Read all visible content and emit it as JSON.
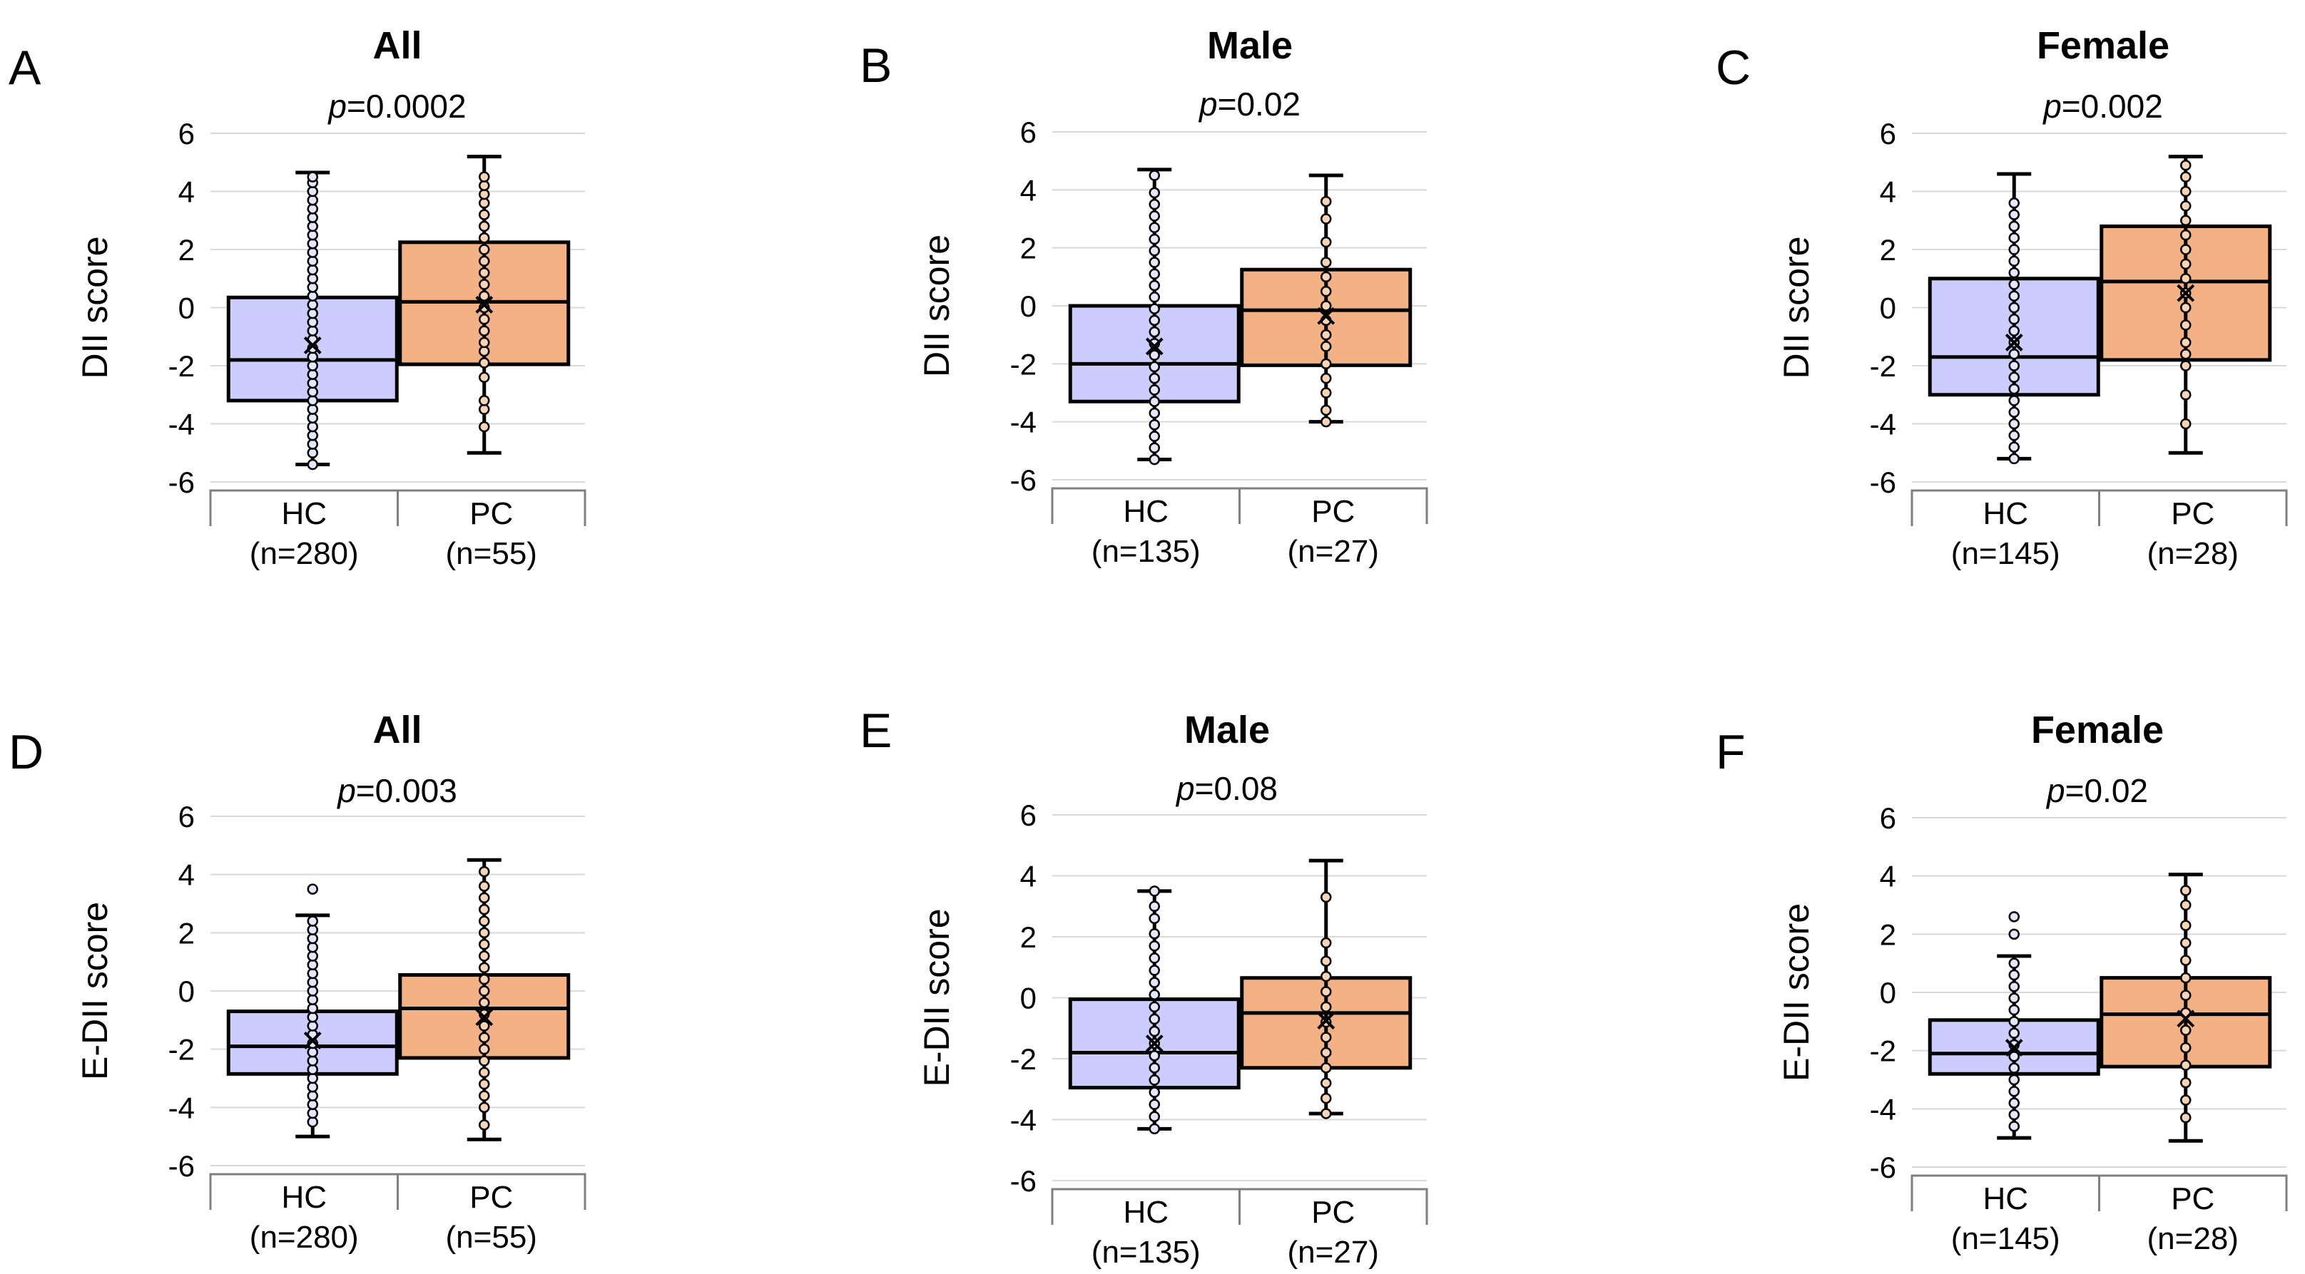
{
  "chart_data": [
    {
      "panel": "A",
      "type": "box",
      "title": "All",
      "p_prefix": "p",
      "p_value": "=0.0002",
      "ylabel": "DII score",
      "ylim": [
        -6,
        6
      ],
      "yticks": [
        6,
        4,
        2,
        0,
        -2,
        -4,
        -6
      ],
      "yticklabels": [
        "6",
        "4",
        "2",
        "0",
        "-2",
        "-4",
        "-6"
      ],
      "groups": [
        {
          "name": "HC",
          "n_label": "(n=280)",
          "min": -5.4,
          "q1": -3.2,
          "median": -1.8,
          "q3": 0.35,
          "max": 4.65,
          "mean": -1.3,
          "points": [
            -5.4,
            -5.0,
            -4.7,
            -4.4,
            -4.1,
            -3.8,
            -3.5,
            -3.2,
            -2.9,
            -2.6,
            -2.3,
            -2.0,
            -1.7,
            -1.4,
            -1.1,
            -0.8,
            -0.5,
            -0.2,
            0.1,
            0.4,
            0.7,
            1.0,
            1.3,
            1.6,
            1.9,
            2.2,
            2.5,
            2.8,
            3.1,
            3.4,
            3.7,
            4.0,
            4.3,
            4.5
          ]
        },
        {
          "name": "PC",
          "n_label": "(n=55)",
          "min": -5.0,
          "q1": -1.95,
          "median": 0.2,
          "q3": 2.25,
          "max": 5.2,
          "mean": 0.1,
          "points": [
            -4.1,
            -3.5,
            -3.2,
            -2.4,
            -1.9,
            -1.5,
            -1.2,
            -0.8,
            -0.4,
            0.0,
            0.4,
            0.8,
            1.2,
            1.6,
            2.0,
            2.4,
            2.8,
            3.2,
            3.6,
            3.9,
            4.2,
            4.5
          ]
        }
      ]
    },
    {
      "panel": "B",
      "type": "box",
      "title": "Male",
      "p_prefix": "p",
      "p_value": "=0.02",
      "ylabel": "DII score",
      "ylim": [
        -6,
        6
      ],
      "yticks": [
        6,
        4,
        2,
        0,
        -2,
        -4,
        -6
      ],
      "yticklabels": [
        "6",
        "4",
        "2",
        "0",
        "-2",
        "-4",
        "-6"
      ],
      "groups": [
        {
          "name": "HC",
          "n_label": "(n=135)",
          "min": -5.3,
          "q1": -3.3,
          "median": -2.0,
          "q3": 0.0,
          "max": 4.7,
          "mean": -1.4,
          "points": [
            -5.3,
            -4.9,
            -4.5,
            -4.1,
            -3.7,
            -3.3,
            -2.9,
            -2.5,
            -2.1,
            -1.7,
            -1.3,
            -0.9,
            -0.5,
            -0.1,
            0.3,
            0.7,
            1.1,
            1.5,
            1.9,
            2.3,
            2.7,
            3.1,
            3.5,
            3.9,
            4.5
          ]
        },
        {
          "name": "PC",
          "n_label": "(n=27)",
          "min": -4.0,
          "q1": -2.05,
          "median": -0.15,
          "q3": 1.25,
          "max": 4.5,
          "mean": -0.35,
          "points": [
            -4.0,
            -3.6,
            -3.0,
            -2.5,
            -2.0,
            -1.4,
            -1.0,
            -0.5,
            0.0,
            0.5,
            1.0,
            1.5,
            2.2,
            3.0,
            3.6
          ]
        }
      ]
    },
    {
      "panel": "C",
      "type": "box",
      "title": "Female",
      "p_prefix": "p",
      "p_value": "=0.002",
      "ylabel": "DII score",
      "ylim": [
        -6,
        6
      ],
      "yticks": [
        6,
        4,
        2,
        0,
        -2,
        -4,
        -6
      ],
      "yticklabels": [
        "6",
        "4",
        "2",
        "0",
        "-2",
        "-4",
        "-6"
      ],
      "groups": [
        {
          "name": "HC",
          "n_label": "(n=145)",
          "min": -5.2,
          "q1": -3.0,
          "median": -1.7,
          "q3": 1.0,
          "max": 4.6,
          "mean": -1.2,
          "points": [
            -5.2,
            -4.8,
            -4.4,
            -4.0,
            -3.6,
            -3.2,
            -2.8,
            -2.4,
            -2.0,
            -1.6,
            -1.2,
            -0.8,
            -0.4,
            0.0,
            0.4,
            0.8,
            1.2,
            1.6,
            2.0,
            2.4,
            2.8,
            3.2,
            3.6
          ]
        },
        {
          "name": "PC",
          "n_label": "(n=28)",
          "min": -5.0,
          "q1": -1.8,
          "median": 0.9,
          "q3": 2.8,
          "max": 5.2,
          "mean": 0.5,
          "points": [
            -4.0,
            -3.0,
            -2.0,
            -1.6,
            -1.2,
            -0.6,
            0.0,
            0.5,
            1.0,
            1.5,
            2.0,
            2.5,
            3.0,
            3.5,
            4.0,
            4.5,
            4.9
          ]
        }
      ]
    },
    {
      "panel": "D",
      "type": "box",
      "title": "All",
      "p_prefix": "p",
      "p_value": "=0.003",
      "ylabel": "E-DII score",
      "ylim": [
        -6,
        6
      ],
      "yticks": [
        6,
        4,
        2,
        0,
        -2,
        -4,
        -6
      ],
      "yticklabels": [
        "6",
        "4",
        "2",
        "0",
        "-2",
        "-4",
        "-6"
      ],
      "groups": [
        {
          "name": "HC",
          "n_label": "(n=280)",
          "min": -5.0,
          "q1": -2.85,
          "median": -1.9,
          "q3": -0.7,
          "max": 2.6,
          "mean": -1.7,
          "points": [
            -4.5,
            -4.2,
            -3.9,
            -3.6,
            -3.3,
            -3.0,
            -2.7,
            -2.4,
            -2.1,
            -1.8,
            -1.5,
            -1.2,
            -0.9,
            -0.6,
            -0.3,
            0.0,
            0.3,
            0.6,
            0.9,
            1.2,
            1.5,
            1.8,
            2.1,
            2.4,
            3.5
          ]
        },
        {
          "name": "PC",
          "n_label": "(n=55)",
          "min": -5.1,
          "q1": -2.3,
          "median": -0.6,
          "q3": 0.55,
          "max": 4.5,
          "mean": -0.9,
          "points": [
            -4.6,
            -4.0,
            -3.6,
            -3.2,
            -2.8,
            -2.4,
            -2.0,
            -1.6,
            -1.2,
            -0.8,
            -0.4,
            0.0,
            0.4,
            0.8,
            1.2,
            1.6,
            2.0,
            2.4,
            2.8,
            3.2,
            3.6,
            4.1
          ]
        }
      ]
    },
    {
      "panel": "E",
      "type": "box",
      "title": "Male",
      "p_prefix": "p",
      "p_value": "=0.08",
      "ylabel": "E-DII score",
      "ylim": [
        -6,
        6
      ],
      "yticks": [
        6,
        4,
        2,
        0,
        -2,
        -4,
        -6
      ],
      "yticklabels": [
        "6",
        "4",
        "2",
        "0",
        "-2",
        "-4",
        "-6"
      ],
      "groups": [
        {
          "name": "HC",
          "n_label": "(n=135)",
          "min": -4.3,
          "q1": -2.95,
          "median": -1.8,
          "q3": -0.05,
          "max": 3.5,
          "mean": -1.5,
          "points": [
            -4.3,
            -3.9,
            -3.5,
            -3.1,
            -2.7,
            -2.3,
            -1.9,
            -1.5,
            -1.1,
            -0.7,
            -0.3,
            0.1,
            0.5,
            0.9,
            1.3,
            1.7,
            2.1,
            2.6,
            3.0,
            3.5
          ]
        },
        {
          "name": "PC",
          "n_label": "(n=27)",
          "min": -3.8,
          "q1": -2.3,
          "median": -0.5,
          "q3": 0.65,
          "max": 4.5,
          "mean": -0.75,
          "points": [
            -3.8,
            -3.3,
            -2.8,
            -2.3,
            -1.8,
            -1.3,
            -0.8,
            -0.3,
            0.2,
            0.7,
            1.2,
            1.8,
            3.3
          ]
        }
      ]
    },
    {
      "panel": "F",
      "type": "box",
      "title": "Female",
      "p_prefix": "p",
      "p_value": "=0.02",
      "ylabel": "E-DII score",
      "ylim": [
        -6,
        6
      ],
      "yticks": [
        6,
        4,
        2,
        0,
        -2,
        -4,
        -6
      ],
      "yticklabels": [
        "6",
        "4",
        "2",
        "0",
        "-2",
        "-4",
        "-6"
      ],
      "groups": [
        {
          "name": "HC",
          "n_label": "(n=145)",
          "min": -5.0,
          "q1": -2.8,
          "median": -2.1,
          "q3": -0.95,
          "max": 1.25,
          "mean": -1.9,
          "points": [
            -4.6,
            -4.2,
            -3.8,
            -3.4,
            -3.0,
            -2.6,
            -2.2,
            -1.8,
            -1.4,
            -1.0,
            -0.6,
            -0.2,
            0.2,
            0.6,
            1.0,
            2.0,
            2.6
          ]
        },
        {
          "name": "PC",
          "n_label": "(n=28)",
          "min": -5.1,
          "q1": -2.55,
          "median": -0.75,
          "q3": 0.5,
          "max": 4.05,
          "mean": -0.9,
          "points": [
            -4.3,
            -3.7,
            -3.1,
            -2.5,
            -1.9,
            -1.3,
            -0.7,
            -0.1,
            0.5,
            1.1,
            1.7,
            2.3,
            3.0,
            3.5
          ]
        }
      ]
    }
  ]
}
